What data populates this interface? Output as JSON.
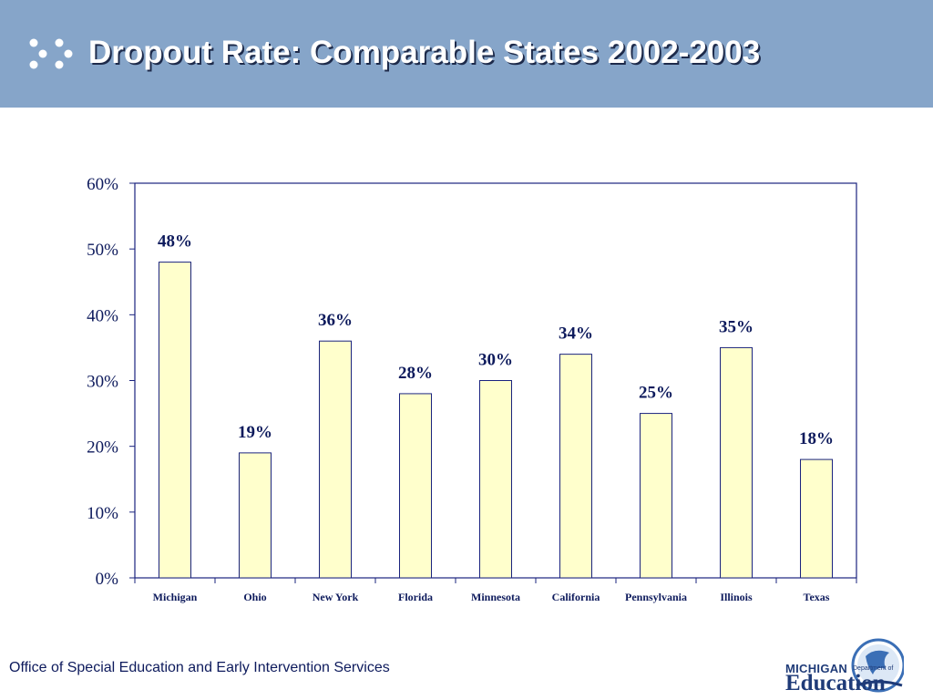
{
  "slide": {
    "title": "Dropout Rate: Comparable States 2002-2003",
    "footer": "Office of Special Education and Early Intervention Services",
    "logo": {
      "line1": "MICHIGAN",
      "line2": "Department of",
      "line3": "Education"
    },
    "icons": {
      "title_bullet": "dots-bullet-icon",
      "logo_emblem": "michigan-seal-icon"
    }
  },
  "colors": {
    "header_bg": "#86a5c9",
    "bar_fill": "#ffffcc",
    "bar_stroke": "#1a237e",
    "text_navy": "#0d1a5c"
  },
  "chart_data": {
    "type": "bar",
    "categories": [
      "Michigan",
      "Ohio",
      "New York",
      "Florida",
      "Minnesota",
      "California",
      "Pennsylvania",
      "Illinois",
      "Texas"
    ],
    "values": [
      48,
      19,
      36,
      28,
      30,
      34,
      25,
      35,
      18
    ],
    "data_labels": [
      "48%",
      "19%",
      "36%",
      "28%",
      "30%",
      "34%",
      "25%",
      "35%",
      "18%"
    ],
    "y_ticks": [
      0,
      10,
      20,
      30,
      40,
      50,
      60
    ],
    "y_tick_labels": [
      "0%",
      "10%",
      "20%",
      "30%",
      "40%",
      "50%",
      "60%"
    ],
    "ylim": [
      0,
      60
    ],
    "grid": false,
    "legend": "none"
  }
}
